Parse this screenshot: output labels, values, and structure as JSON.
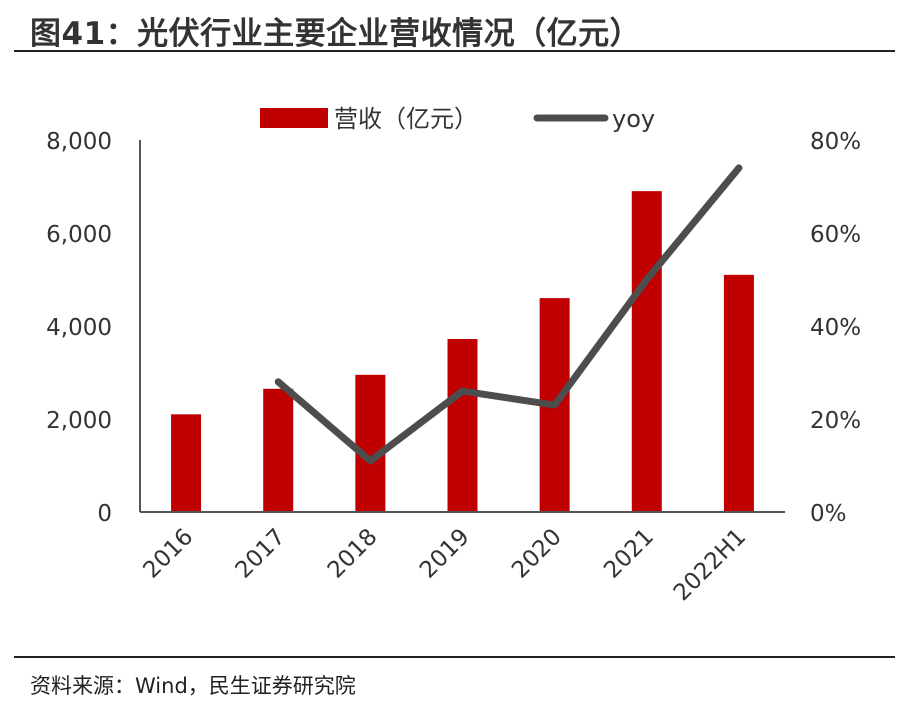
{
  "header": {
    "title": "图41：光伏行业主要企业营收情况（亿元）"
  },
  "footer": {
    "source": "资料来源：Wind，民生证券研究院"
  },
  "colors": {
    "bar": "#c00000",
    "line": "#4d4d4d",
    "axis": "#555555"
  },
  "chart_data": {
    "type": "bar",
    "title": "图41：光伏行业主要企业营收情况（亿元）",
    "categories": [
      "2016",
      "2017",
      "2018",
      "2019",
      "2020",
      "2021",
      "2022H1"
    ],
    "series": [
      {
        "name": "营收（亿元）",
        "type": "bar",
        "axis": "left",
        "values": [
          2100,
          2650,
          2950,
          3720,
          4600,
          6900,
          5100
        ]
      },
      {
        "name": "yoy",
        "type": "line",
        "axis": "right",
        "values": [
          null,
          0.28,
          0.11,
          0.26,
          0.23,
          0.5,
          0.74
        ]
      }
    ],
    "ylim_left": [
      0,
      8000
    ],
    "ylim_right": [
      0,
      0.8
    ],
    "yticks_left": [
      "0",
      "2,000",
      "4,000",
      "6,000",
      "8,000"
    ],
    "yticks_right": [
      "0%",
      "20%",
      "40%",
      "60%",
      "80%"
    ],
    "legend": "top",
    "grid": false
  }
}
